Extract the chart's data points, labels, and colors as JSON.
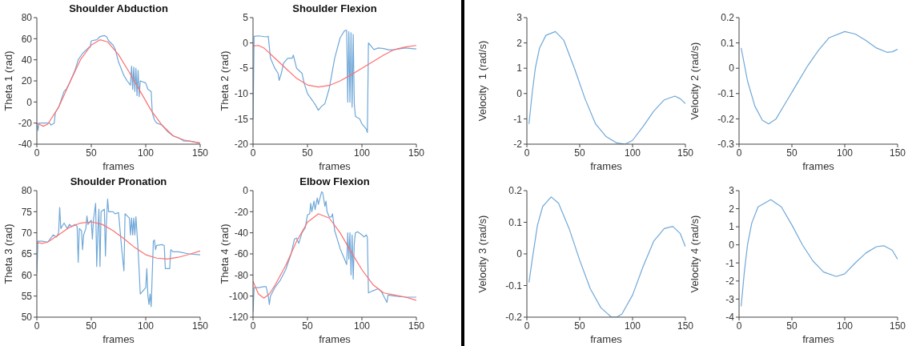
{
  "chart_data": [
    {
      "type": "line",
      "title": "Shoulder Abduction",
      "xlabel": "frames",
      "ylabel": "Theta 1 (rad)",
      "xlim": [
        0,
        150
      ],
      "ylim": [
        -40,
        80
      ],
      "xticks": [
        0,
        50,
        100,
        150
      ],
      "yticks": [
        -40,
        -20,
        0,
        20,
        40,
        60,
        80
      ],
      "series": [
        {
          "color": "#70a8d8",
          "x": [
            0,
            1,
            2,
            5,
            12,
            13,
            16,
            17,
            20,
            25,
            27,
            30,
            35,
            38,
            42,
            48,
            49,
            50,
            55,
            58,
            62,
            64,
            66,
            70,
            72,
            75,
            80,
            83,
            86,
            87,
            88,
            89,
            90,
            91,
            92,
            93,
            94,
            95,
            100,
            102,
            105,
            106,
            108,
            110,
            115,
            120,
            125,
            130,
            135,
            140,
            145,
            150
          ],
          "values": [
            -20,
            -27,
            -20,
            -20,
            -20,
            -22,
            -20,
            -10,
            -5,
            10,
            12,
            18,
            30,
            40,
            46,
            52,
            52,
            58,
            59,
            62,
            63,
            62,
            58,
            54,
            50,
            38,
            25,
            20,
            16,
            34,
            12,
            33,
            10,
            32,
            6,
            30,
            5,
            20,
            18,
            12,
            10,
            -10,
            -17,
            -20,
            -22,
            -28,
            -32,
            -34,
            -37,
            -37,
            -38,
            -39
          ]
        },
        {
          "color": "#ff6e6e",
          "x": [
            0,
            6,
            10,
            20,
            30,
            40,
            50,
            58,
            65,
            75,
            85,
            95,
            105,
            115,
            125,
            135,
            150
          ],
          "values": [
            -20,
            -23,
            -21,
            -5,
            18,
            40,
            54,
            59,
            57,
            45,
            28,
            10,
            -8,
            -22,
            -32,
            -36,
            -39
          ]
        }
      ]
    },
    {
      "type": "line",
      "title": "Shoulder Flexion",
      "xlabel": "frames",
      "ylabel": "Theta 2 (rad)",
      "xlim": [
        0,
        150
      ],
      "ylim": [
        -20,
        5
      ],
      "xticks": [
        0,
        50,
        100,
        150
      ],
      "yticks": [
        -20,
        -15,
        -10,
        -5,
        0,
        5
      ],
      "series": [
        {
          "color": "#70a8d8",
          "x": [
            0,
            1,
            5,
            12,
            14,
            16,
            20,
            23,
            24,
            26,
            28,
            32,
            36,
            37,
            40,
            45,
            47,
            50,
            55,
            58,
            60,
            63,
            66,
            70,
            75,
            80,
            84,
            86,
            87,
            88,
            89,
            90,
            91,
            92,
            93,
            94,
            98,
            100,
            104,
            105,
            106,
            108,
            111,
            115,
            120,
            125,
            130,
            140,
            150
          ],
          "values": [
            -15,
            1.3,
            1.4,
            1.2,
            1.3,
            -3,
            -5,
            -6,
            -7.4,
            -6,
            -4,
            -3,
            -3,
            -2.4,
            -5,
            -6,
            -8,
            -10,
            -11.5,
            -12.5,
            -13.3,
            -12.5,
            -12,
            -9,
            -3,
            1,
            2.4,
            2.5,
            -11.7,
            2.2,
            -11.7,
            2,
            -12.7,
            1.7,
            -12,
            -14.5,
            -15,
            -16,
            -17,
            -17.7,
            0,
            -0.5,
            -1.3,
            -1,
            -1.1,
            -1.4,
            -1.3,
            -1,
            -1.2
          ]
        },
        {
          "color": "#ff6e6e",
          "x": [
            0,
            5,
            10,
            20,
            30,
            40,
            50,
            60,
            70,
            80,
            90,
            100,
            110,
            120,
            130,
            140,
            150
          ],
          "values": [
            -0.6,
            -0.5,
            -1,
            -3,
            -5,
            -7,
            -8.3,
            -8.7,
            -8.4,
            -7.5,
            -6.3,
            -5,
            -3.7,
            -2.4,
            -1.3,
            -0.8,
            -0.5
          ]
        }
      ]
    },
    {
      "type": "line",
      "title": "Shoulder Pronation",
      "xlabel": "frames",
      "ylabel": "Theta 3 (rad)",
      "xlim": [
        0,
        150
      ],
      "ylim": [
        50,
        80
      ],
      "xticks": [
        0,
        50,
        100,
        150
      ],
      "yticks": [
        50,
        55,
        60,
        65,
        70,
        75,
        80
      ],
      "series": [
        {
          "color": "#70a8d8",
          "x": [
            0,
            1,
            5,
            10,
            15,
            18,
            20,
            21,
            22,
            25,
            28,
            30,
            32,
            35,
            37,
            38,
            39,
            41,
            42,
            43,
            45,
            46,
            47,
            50,
            51,
            52,
            54,
            55,
            56,
            57,
            58,
            59,
            62,
            63,
            64,
            65,
            66,
            70,
            72,
            75,
            78,
            80,
            81,
            83,
            85,
            86,
            87,
            88,
            89,
            90,
            91,
            93,
            95,
            100,
            101,
            102,
            103,
            104,
            105,
            107,
            108,
            109,
            110,
            115,
            117,
            118,
            120,
            122,
            123,
            125,
            130,
            140,
            150
          ],
          "values": [
            60.5,
            68,
            68,
            67.8,
            69.5,
            69,
            70,
            76,
            71,
            72.3,
            71,
            72,
            71.5,
            72,
            71.5,
            63,
            71,
            70.5,
            66,
            69.5,
            71,
            74,
            72,
            73,
            68.5,
            73,
            77,
            62,
            70,
            75.6,
            62,
            75,
            75.6,
            64.5,
            73,
            78,
            75,
            75,
            74.5,
            74.8,
            66,
            61,
            74.5,
            74,
            73.5,
            69.5,
            73.5,
            69.5,
            73.5,
            69.5,
            73.8,
            66,
            55.5,
            57,
            61.5,
            55,
            53,
            55.5,
            52.5,
            68,
            68.3,
            66,
            67,
            67.2,
            67,
            61.5,
            61.5,
            61.5,
            66,
            65.5,
            65.5,
            65,
            64.8
          ]
        },
        {
          "color": "#ff6e6e",
          "x": [
            0,
            5,
            10,
            20,
            30,
            40,
            50,
            60,
            70,
            80,
            90,
            100,
            110,
            120,
            130,
            140,
            150
          ],
          "values": [
            67.7,
            67.5,
            67.8,
            69.5,
            71.3,
            72.3,
            72.6,
            72,
            70.5,
            68.6,
            66.5,
            64.8,
            64,
            63.8,
            64.2,
            64.9,
            65.7
          ]
        }
      ]
    },
    {
      "type": "line",
      "title": "Elbow Flexion",
      "xlabel": "frames",
      "ylabel": "Theta 4 (rad)",
      "xlim": [
        0,
        150
      ],
      "ylim": [
        -120,
        0
      ],
      "xticks": [
        0,
        50,
        100,
        150
      ],
      "yticks": [
        -120,
        -100,
        -80,
        -60,
        -40,
        -20,
        0
      ],
      "series": [
        {
          "color": "#70a8d8",
          "x": [
            0,
            1,
            5,
            10,
            12,
            14,
            15,
            16,
            20,
            25,
            30,
            35,
            38,
            40,
            42,
            45,
            48,
            50,
            52,
            53,
            54,
            56,
            57,
            59,
            60,
            62,
            63,
            64,
            66,
            67,
            68,
            70,
            72,
            73,
            75,
            80,
            84,
            86,
            87,
            88,
            89,
            90,
            91,
            92,
            93,
            94,
            96,
            100,
            102,
            104,
            105,
            106,
            110,
            115,
            118,
            120,
            123,
            124,
            130,
            140,
            150
          ],
          "values": [
            -115,
            -92,
            -92,
            -91,
            -91,
            -100,
            -108,
            -100,
            -92,
            -85,
            -75,
            -60,
            -46,
            -45,
            -50,
            -40,
            -35,
            -23,
            -22,
            -12,
            -20,
            -10,
            -18,
            -7,
            -13,
            -5,
            -1,
            -2,
            -15,
            -10,
            -20,
            -25,
            -25,
            -22,
            -38,
            -55,
            -65,
            -70,
            -40,
            -65,
            -40,
            -80,
            -42,
            -84,
            -50,
            -40,
            -39,
            -42,
            -44,
            -42,
            -44,
            -97,
            -95,
            -93,
            -96,
            -100,
            -106,
            -99,
            -100,
            -101,
            -101
          ]
        },
        {
          "color": "#ff6e6e",
          "x": [
            0,
            5,
            10,
            15,
            20,
            30,
            40,
            50,
            60,
            70,
            80,
            90,
            100,
            110,
            120,
            130,
            140,
            150
          ],
          "values": [
            -86,
            -98,
            -102,
            -98,
            -90,
            -71,
            -48,
            -30,
            -22,
            -26,
            -40,
            -58,
            -75,
            -89,
            -97,
            -99,
            -101,
            -104
          ]
        }
      ]
    },
    {
      "type": "line",
      "xlabel": "frames",
      "ylabel": "Velocity  1 (rad/s)",
      "xlim": [
        0,
        150
      ],
      "ylim": [
        -2,
        3
      ],
      "xticks": [
        0,
        50,
        100,
        150
      ],
      "yticks": [
        -2,
        -1,
        0,
        1,
        2,
        3
      ],
      "series": [
        {
          "color": "#70a8d8",
          "x": [
            2,
            5,
            8,
            12,
            18,
            27,
            35,
            45,
            55,
            65,
            75,
            85,
            93,
            100,
            110,
            120,
            130,
            140,
            145,
            150
          ],
          "values": [
            -1.2,
            0,
            1,
            1.8,
            2.3,
            2.45,
            2.1,
            1,
            -0.2,
            -1.2,
            -1.7,
            -1.95,
            -2,
            -1.85,
            -1.3,
            -0.7,
            -0.25,
            -0.1,
            -0.2,
            -0.4
          ]
        }
      ]
    },
    {
      "type": "line",
      "xlabel": "frames",
      "ylabel": "Velocity 2 (rad/s)",
      "xlim": [
        0,
        150
      ],
      "ylim": [
        -0.3,
        0.2
      ],
      "xticks": [
        0,
        50,
        100,
        150
      ],
      "yticks": [
        -0.3,
        -0.2,
        -0.1,
        0,
        0.1,
        0.2
      ],
      "series": [
        {
          "color": "#70a8d8",
          "x": [
            2,
            8,
            15,
            22,
            28,
            35,
            45,
            55,
            65,
            75,
            85,
            100,
            110,
            120,
            130,
            140,
            145,
            150
          ],
          "values": [
            0.08,
            -0.05,
            -0.15,
            -0.205,
            -0.22,
            -0.2,
            -0.13,
            -0.06,
            0.01,
            0.07,
            0.12,
            0.145,
            0.135,
            0.11,
            0.08,
            0.063,
            0.065,
            0.075
          ]
        }
      ]
    },
    {
      "type": "line",
      "xlabel": "frames",
      "ylabel": "Velocity 3 (rad/s)",
      "xlim": [
        0,
        150
      ],
      "ylim": [
        -0.2,
        0.2
      ],
      "xticks": [
        0,
        50,
        100,
        150
      ],
      "yticks": [
        -0.2,
        -0.1,
        0,
        0.1,
        0.2
      ],
      "series": [
        {
          "color": "#70a8d8",
          "x": [
            2,
            5,
            10,
            15,
            23,
            30,
            40,
            50,
            60,
            70,
            80,
            85,
            90,
            100,
            110,
            120,
            130,
            138,
            145,
            150
          ],
          "values": [
            -0.09,
            -0.02,
            0.09,
            0.15,
            0.18,
            0.16,
            0.08,
            -0.02,
            -0.11,
            -0.17,
            -0.2,
            -0.2,
            -0.19,
            -0.13,
            -0.04,
            0.04,
            0.08,
            0.087,
            0.065,
            0.023
          ]
        }
      ]
    },
    {
      "type": "line",
      "xlabel": "frames",
      "ylabel": "Velocity 4 (rad/s)",
      "xlim": [
        0,
        150
      ],
      "ylim": [
        -4,
        3
      ],
      "xticks": [
        0,
        50,
        100,
        150
      ],
      "yticks": [
        -4,
        -3,
        -2,
        -1,
        0,
        1,
        2,
        3
      ],
      "series": [
        {
          "color": "#70a8d8",
          "x": [
            2,
            5,
            8,
            12,
            18,
            30,
            40,
            50,
            60,
            70,
            80,
            92,
            100,
            110,
            120,
            130,
            137,
            145,
            150
          ],
          "values": [
            -3.4,
            -1.5,
            0,
            1.2,
            2.1,
            2.5,
            2.1,
            1.1,
            0,
            -0.9,
            -1.5,
            -1.75,
            -1.6,
            -1,
            -0.45,
            -0.1,
            -0.05,
            -0.3,
            -0.8
          ]
        }
      ]
    }
  ]
}
